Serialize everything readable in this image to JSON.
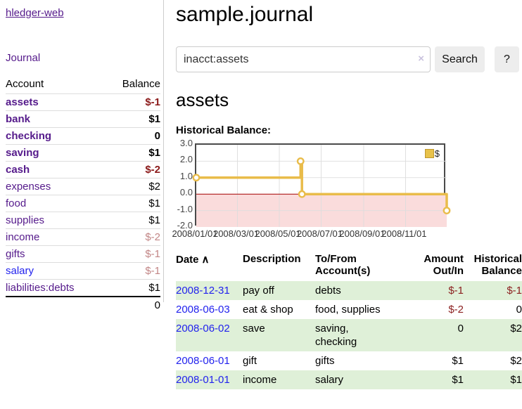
{
  "sidebar": {
    "app_title": "hledger-web",
    "journal_link": "Journal",
    "accounts_table": {
      "headers": {
        "account": "Account",
        "balance": "Balance"
      },
      "rows": [
        {
          "name": "assets",
          "depth": 0,
          "bold": true,
          "link": "visited",
          "value": "$-1",
          "value_style": "neg"
        },
        {
          "name": "bank",
          "depth": 1,
          "bold": true,
          "link": "visited",
          "value": "$1",
          "value_style": "pos"
        },
        {
          "name": "checking",
          "depth": 2,
          "bold": true,
          "link": "visited",
          "value": "0",
          "value_style": "pos"
        },
        {
          "name": "saving",
          "depth": 2,
          "bold": true,
          "link": "visited",
          "value": "$1",
          "value_style": "pos"
        },
        {
          "name": "cash",
          "depth": 1,
          "bold": true,
          "link": "visited",
          "value": "$-2",
          "value_style": "neg"
        },
        {
          "name": "expenses",
          "depth": 0,
          "bold": false,
          "link": "visited",
          "value": "$2",
          "value_style": "pos"
        },
        {
          "name": "food",
          "depth": 1,
          "bold": false,
          "link": "visited",
          "value": "$1",
          "value_style": "pos"
        },
        {
          "name": "supplies",
          "depth": 1,
          "bold": false,
          "link": "visited",
          "value": "$1",
          "value_style": "pos"
        },
        {
          "name": "income",
          "depth": 0,
          "bold": false,
          "link": "visited",
          "value": "$-2",
          "value_style": "neg-muted"
        },
        {
          "name": "gifts",
          "depth": 1,
          "bold": false,
          "link": "visited",
          "value": "$-1",
          "value_style": "neg-muted"
        },
        {
          "name": "salary",
          "depth": 1,
          "bold": false,
          "link": "unvisited",
          "value": "$-1",
          "value_style": "neg-muted"
        },
        {
          "name": "liabilities:debts",
          "depth": 0,
          "bold": false,
          "link": "visited",
          "value": "$1",
          "value_style": "pos"
        }
      ],
      "total": "0"
    }
  },
  "header": {
    "title": "sample.journal"
  },
  "search": {
    "value": "inacct:assets",
    "clear_icon": "×",
    "search_label": "Search",
    "help_label": "?"
  },
  "account_page": {
    "heading": "assets",
    "chart_label": "Historical Balance:"
  },
  "chart_data": {
    "type": "line",
    "title": "Historical Balance",
    "series": [
      {
        "name": "$",
        "step": true,
        "points": [
          [
            "2008-01-01",
            1
          ],
          [
            "2008-06-01",
            2
          ],
          [
            "2008-06-03",
            0
          ],
          [
            "2008-12-31",
            -1
          ]
        ]
      }
    ],
    "x_start": "2008-01-01",
    "x_range_days": 365,
    "x_ticks": [
      "2008/01/01",
      "2008/03/01",
      "2008/05/01",
      "2008/07/01",
      "2008/09/01",
      "2008/11/01"
    ],
    "y_ticks": [
      3.0,
      2.0,
      1.0,
      0.0,
      -1.0,
      -2.0
    ],
    "ylim": [
      -2,
      3
    ],
    "grid": true,
    "legend": {
      "label": "$",
      "position": "top-right"
    },
    "colors": {
      "line": "#e9bc4a",
      "marker_fill": "#ffffff",
      "negative_region": "#fadcdc",
      "zero_line": "#a40000",
      "grid": "#dddddd",
      "border": "#4a4a4a"
    }
  },
  "register_table": {
    "headers": {
      "date": "Date",
      "sort_icon": "∧",
      "description": "Description",
      "tofrom": "To/From Account(s)",
      "amount": "Amount Out/In",
      "balance": "Historical Balance"
    },
    "rows": [
      {
        "date": "2008-12-31",
        "description": "pay off",
        "accounts": "debts",
        "amount": "$-1",
        "amount_neg": true,
        "balance": "$-1",
        "balance_neg": true
      },
      {
        "date": "2008-06-03",
        "description": "eat & shop",
        "accounts": "food, supplies",
        "amount": "$-2",
        "amount_neg": true,
        "balance": "0",
        "balance_neg": false
      },
      {
        "date": "2008-06-02",
        "description": "save",
        "accounts": "saving,\nchecking",
        "amount": "0",
        "amount_neg": false,
        "balance": "$2",
        "balance_neg": false
      },
      {
        "date": "2008-06-01",
        "description": "gift",
        "accounts": "gifts",
        "amount": "$1",
        "amount_neg": false,
        "balance": "$2",
        "balance_neg": false
      },
      {
        "date": "2008-01-01",
        "description": "income",
        "accounts": "salary",
        "amount": "$1",
        "amount_neg": false,
        "balance": "$1",
        "balance_neg": false
      }
    ]
  }
}
